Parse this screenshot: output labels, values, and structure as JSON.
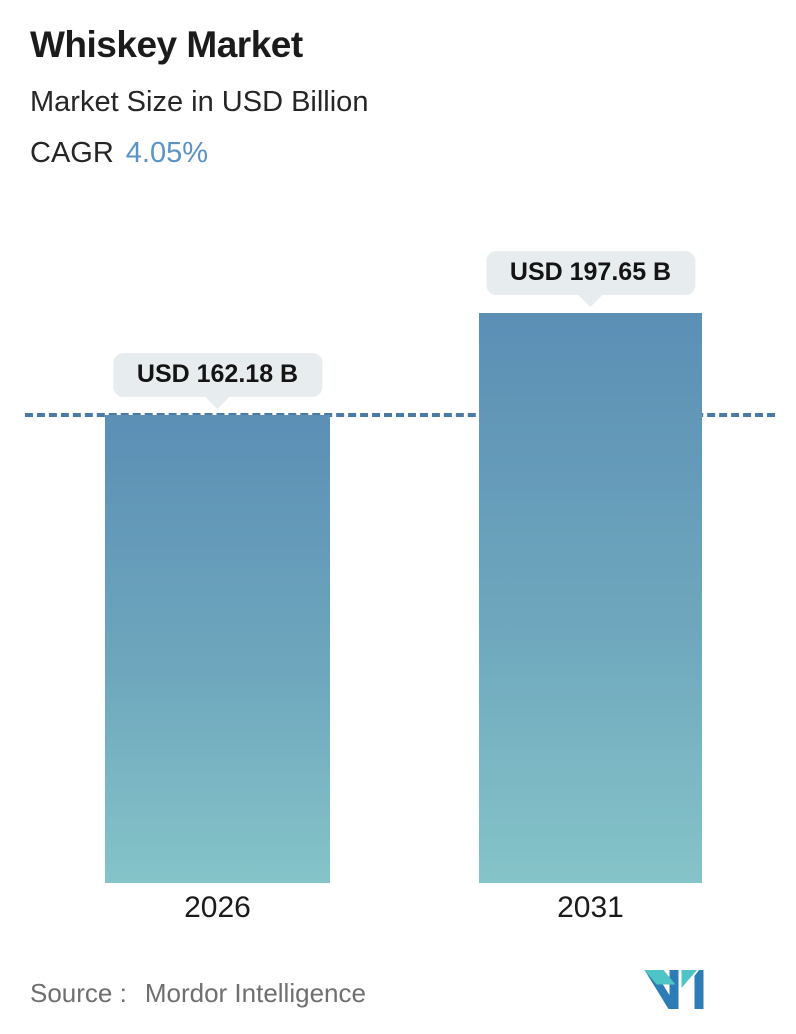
{
  "header": {
    "title": "Whiskey Market",
    "subtitle": "Market Size in USD Billion",
    "cagr_label": "CAGR",
    "cagr_value": "4.05%"
  },
  "chart_data": {
    "type": "bar",
    "categories": [
      "2026",
      "2031"
    ],
    "values": [
      162.18,
      197.65
    ],
    "value_labels": [
      "USD 162.18 B",
      "USD 197.65 B"
    ],
    "title": "Whiskey Market",
    "subtitle": "Market Size in USD Billion",
    "cagr": "4.05%",
    "unit": "USD Billion",
    "xlabel": "",
    "ylabel": "Market Size in USD Billion",
    "ylim": [
      0,
      197.65
    ],
    "grid": false,
    "legend": "none",
    "reference_line": {
      "value": 162.18,
      "style": "dashed",
      "color": "#4A7BA6"
    },
    "bar_gradient_top": "#5C8FB5",
    "bar_gradient_bottom": "#85C4C9"
  },
  "footer": {
    "source_label": "Source :",
    "source_value": "Mordor Intelligence",
    "logo": "mordor-intelligence-logo"
  },
  "colors": {
    "accent_blue": "#5B93C5",
    "dashed_line": "#4A7BA6",
    "tooltip_bg": "#E7EDEE",
    "text_dark": "#1B1B1B",
    "text_gray": "#6F6F6F",
    "logo_blue": "#2E7CB5",
    "logo_teal": "#4FC4C6"
  }
}
